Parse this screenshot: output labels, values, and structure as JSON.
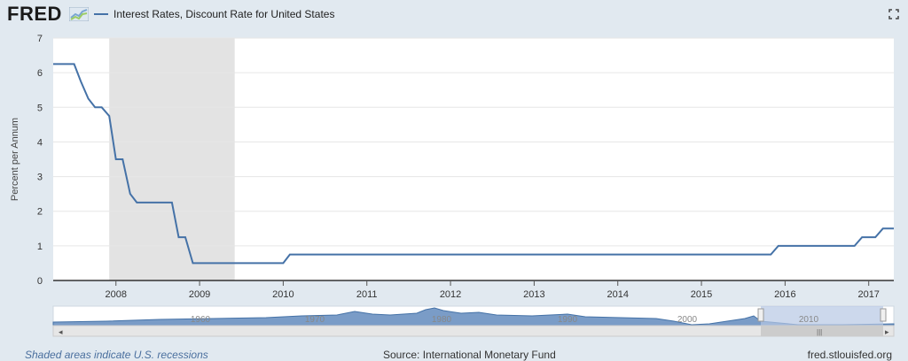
{
  "header": {
    "logo_text": "FRED",
    "series_title": "Interest Rates, Discount Rate for United States",
    "series_color": "#4572a7"
  },
  "chart_data": {
    "type": "line",
    "title": "Interest Rates, Discount Rate for United States",
    "ylabel": "Percent per Annum",
    "xlabel": "",
    "ylim": [
      0,
      7
    ],
    "xlim": [
      2007.25,
      2017.3
    ],
    "y_ticks": [
      "0",
      "1",
      "2",
      "3",
      "4",
      "5",
      "6",
      "7"
    ],
    "x_ticks": [
      {
        "label": "2008",
        "value": 2008.0
      },
      {
        "label": "2009",
        "value": 2009.0
      },
      {
        "label": "2010",
        "value": 2010.0
      },
      {
        "label": "2011",
        "value": 2011.0
      },
      {
        "label": "2012",
        "value": 2012.0
      },
      {
        "label": "2013",
        "value": 2013.0
      },
      {
        "label": "2014",
        "value": 2014.0
      },
      {
        "label": "2015",
        "value": 2015.0
      },
      {
        "label": "2016",
        "value": 2016.0
      },
      {
        "label": "2017",
        "value": 2017.0
      }
    ],
    "recessions": [
      [
        2007.92,
        2009.42
      ]
    ],
    "grid": true,
    "series": [
      {
        "color": "#4572a7",
        "points": [
          [
            2007.25,
            6.25
          ],
          [
            2007.5,
            6.25
          ],
          [
            2007.58,
            5.75
          ],
          [
            2007.67,
            5.25
          ],
          [
            2007.75,
            5.0
          ],
          [
            2007.83,
            5.0
          ],
          [
            2007.92,
            4.75
          ],
          [
            2008.0,
            3.5
          ],
          [
            2008.08,
            3.5
          ],
          [
            2008.17,
            2.5
          ],
          [
            2008.25,
            2.25
          ],
          [
            2008.33,
            2.25
          ],
          [
            2008.42,
            2.25
          ],
          [
            2008.5,
            2.25
          ],
          [
            2008.58,
            2.25
          ],
          [
            2008.67,
            2.25
          ],
          [
            2008.75,
            1.25
          ],
          [
            2008.83,
            1.25
          ],
          [
            2008.92,
            0.5
          ],
          [
            2009.0,
            0.5
          ],
          [
            2010.0,
            0.5
          ],
          [
            2010.08,
            0.75
          ],
          [
            2015.83,
            0.75
          ],
          [
            2015.92,
            1.0
          ],
          [
            2016.83,
            1.0
          ],
          [
            2016.92,
            1.25
          ],
          [
            2017.08,
            1.25
          ],
          [
            2017.17,
            1.5
          ],
          [
            2017.3,
            1.5
          ]
        ]
      }
    ]
  },
  "navigator": {
    "labels": [
      "1960",
      "1970",
      "1980",
      "1990",
      "2000",
      "2010"
    ]
  },
  "footer": {
    "recession_note": "Shaded areas indicate U.S. recessions",
    "source": "Source: International Monetary Fund",
    "site": "fred.stlouisfed.org"
  }
}
